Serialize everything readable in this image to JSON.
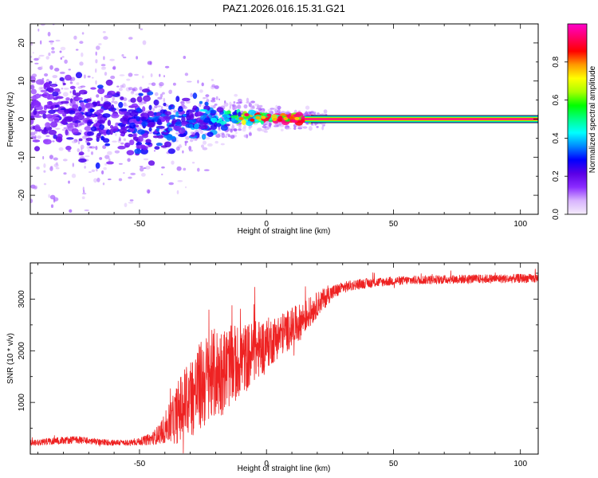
{
  "chart_data": [
    {
      "type": "heatmap",
      "title": "PAZ1.2026.016.15.31.G21",
      "xlabel": "Height of straight line (km)",
      "ylabel": "Frequency (Hz)",
      "xlim": [
        -93,
        107
      ],
      "ylim": [
        -25,
        25
      ],
      "xticks": [
        -50,
        0,
        50,
        100
      ],
      "yticks": [
        -20,
        -10,
        0,
        10,
        20
      ],
      "colorbar": {
        "label": "Normalized spectral amplitude",
        "range": [
          0,
          1
        ],
        "ticks": [
          0.0,
          0.2,
          0.4,
          0.6,
          0.8
        ],
        "colormap": [
          "#f5ecfb",
          "#d8b4fe",
          "#8b2cff",
          "#5a00e6",
          "#0000ff",
          "#0088ff",
          "#00ffff",
          "#00ff88",
          "#00ff00",
          "#aaff00",
          "#ffff00",
          "#ff9900",
          "#ff0000",
          "#ff0066",
          "#ff00cc"
        ]
      },
      "ridge": {
        "description_points": [
          {
            "height_km": -90,
            "freq_hz": 3,
            "spread_hz": 9,
            "amp": 0.15
          },
          {
            "height_km": -70,
            "freq_hz": 0,
            "spread_hz": 8,
            "amp": 0.2
          },
          {
            "height_km": -50,
            "freq_hz": -1,
            "spread_hz": 7,
            "amp": 0.22
          },
          {
            "height_km": -35,
            "freq_hz": -1,
            "spread_hz": 5,
            "amp": 0.25
          },
          {
            "height_km": -20,
            "freq_hz": 0,
            "spread_hz": 2.5,
            "amp": 0.3
          },
          {
            "height_km": -10,
            "freq_hz": 0.5,
            "spread_hz": 1.5,
            "amp": 0.45
          },
          {
            "height_km": 0,
            "freq_hz": 0.3,
            "spread_hz": 1,
            "amp": 0.7
          },
          {
            "height_km": 15,
            "freq_hz": 0,
            "spread_hz": 0.7,
            "amp": 0.9
          },
          {
            "height_km": 107,
            "freq_hz": 0,
            "spread_hz": 0.6,
            "amp": 1.0
          }
        ]
      }
    },
    {
      "type": "line",
      "xlabel": "Height of straight line (km)",
      "ylabel": "SNR (10 * v/v)",
      "xlim": [
        -93,
        107
      ],
      "ylim": [
        0,
        3700
      ],
      "xticks": [
        -50,
        0,
        50,
        100
      ],
      "yticks": [
        1000,
        2000,
        3000
      ],
      "color": "#ee2222",
      "series": [
        {
          "name": "SNR",
          "x": [
            -93,
            -85,
            -75,
            -65,
            -55,
            -50,
            -45,
            -42,
            -40,
            -37,
            -35,
            -33,
            -30,
            -27,
            -25,
            -22,
            -20,
            -17,
            -15,
            -12,
            -10,
            -7,
            -5,
            -2,
            0,
            3,
            5,
            8,
            10,
            13,
            15,
            18,
            20,
            23,
            25,
            28,
            30,
            35,
            40,
            45,
            50,
            55,
            60,
            65,
            70,
            75,
            80,
            85,
            90,
            95,
            100,
            107
          ],
          "values": [
            220,
            250,
            280,
            230,
            220,
            240,
            300,
            400,
            500,
            650,
            800,
            950,
            1100,
            1250,
            1380,
            1480,
            1560,
            1620,
            1680,
            1750,
            1820,
            1900,
            1980,
            2060,
            2140,
            2220,
            2300,
            2380,
            2460,
            2540,
            2650,
            2780,
            2900,
            3020,
            3100,
            3170,
            3220,
            3280,
            3310,
            3330,
            3350,
            3360,
            3370,
            3375,
            3380,
            3385,
            3390,
            3390,
            3395,
            3395,
            3400,
            3400
          ],
          "noise_amplitude": [
            60,
            70,
            70,
            60,
            60,
            70,
            120,
            200,
            300,
            450,
            600,
            700,
            800,
            850,
            900,
            900,
            900,
            850,
            800,
            750,
            700,
            650,
            600,
            550,
            500,
            450,
            420,
            400,
            380,
            360,
            320,
            280,
            240,
            200,
            160,
            130,
            110,
            100,
            95,
            90,
            85,
            85,
            85,
            85,
            85,
            85,
            85,
            85,
            85,
            85,
            85,
            85
          ]
        }
      ]
    }
  ]
}
